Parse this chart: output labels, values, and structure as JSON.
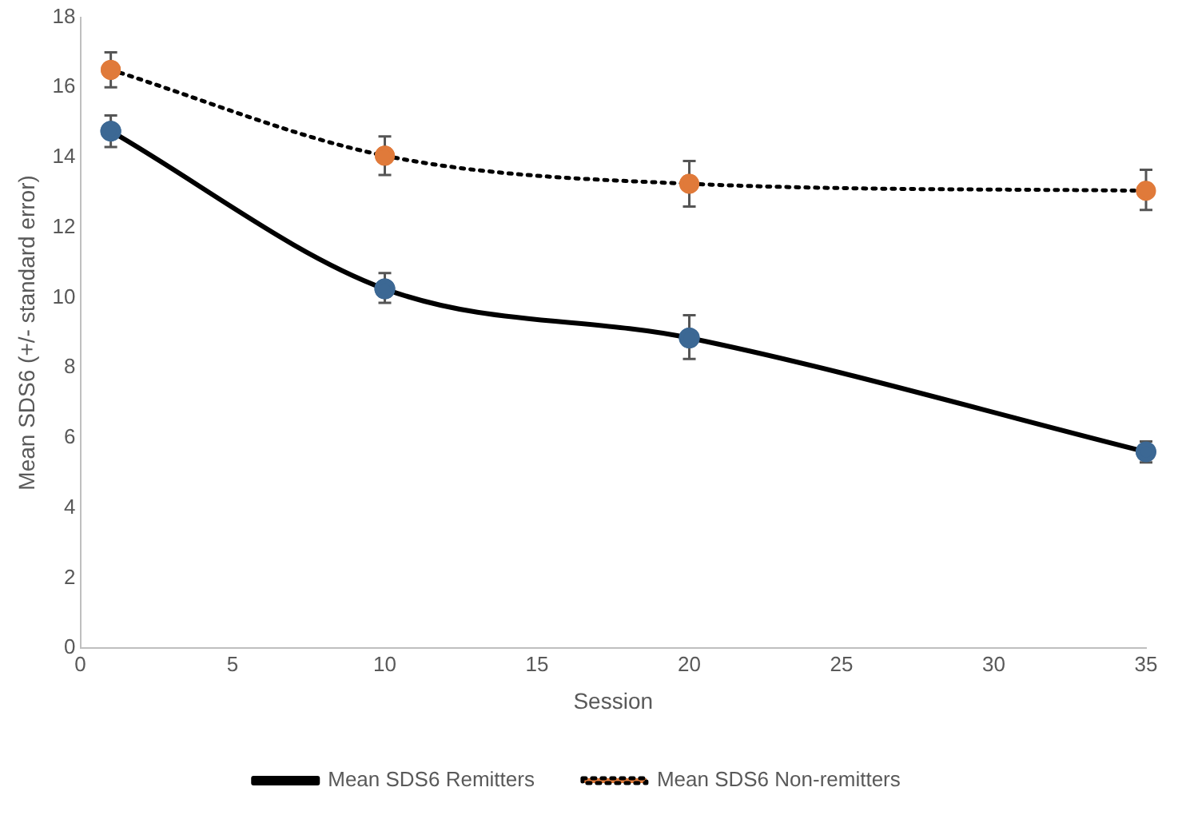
{
  "chart_data": {
    "type": "line",
    "xlabel": "Session",
    "ylabel": "Mean SDS6 (+/- standard error)",
    "x": [
      1,
      10,
      20,
      35
    ],
    "series": [
      {
        "name": "Mean SDS6 Remitters",
        "color": "#3c6894",
        "line_style": "solid",
        "values": [
          14.75,
          10.25,
          8.85,
          5.6
        ],
        "errors": [
          [
            14.3,
            15.2
          ],
          [
            9.85,
            10.7
          ],
          [
            8.25,
            9.5
          ],
          [
            5.3,
            5.9
          ]
        ]
      },
      {
        "name": "Mean SDS6 Non-remitters",
        "color": "#e07a3a",
        "line_style": "dotted",
        "values": [
          16.5,
          14.05,
          13.25,
          13.05
        ],
        "errors": [
          [
            16.0,
            17.0
          ],
          [
            13.5,
            14.6
          ],
          [
            12.6,
            13.9
          ],
          [
            12.5,
            13.65
          ]
        ]
      }
    ],
    "xlim": [
      0,
      35
    ],
    "xticks": [
      0,
      5,
      10,
      15,
      20,
      25,
      30,
      35
    ],
    "ylim": [
      0,
      18
    ],
    "yticks": [
      0,
      2,
      4,
      6,
      8,
      10,
      12,
      14,
      16,
      18
    ],
    "grid": false,
    "legend": "bottom",
    "marker": "circle"
  }
}
